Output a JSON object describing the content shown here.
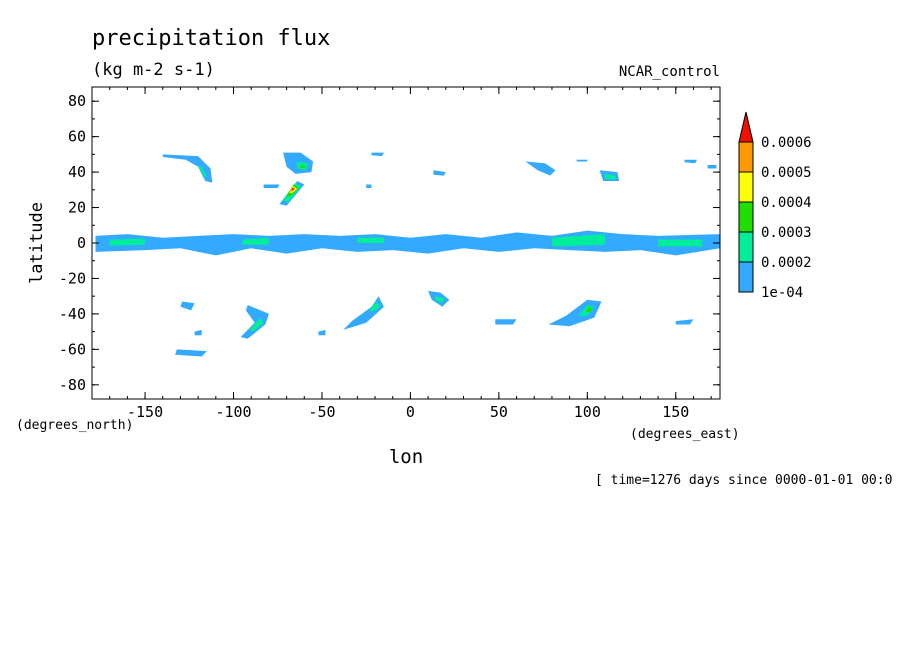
{
  "chart_data": {
    "type": "heatmap",
    "subtype": "filled-contour-map",
    "title": "precipitation flux",
    "subtitle": "(kg m-2 s-1)",
    "experiment": "NCAR_control",
    "xlabel": "lon",
    "ylabel": "latitude",
    "x_units": "(degrees_east)",
    "y_units": "(degrees_north)",
    "time_note": "[ time=1276 days since 0000-01-01 00:0",
    "xlim": [
      -180,
      175
    ],
    "ylim": [
      -88,
      88
    ],
    "x_ticks": [
      -150,
      -100,
      -50,
      0,
      50,
      100,
      150
    ],
    "y_ticks": [
      80,
      60,
      40,
      20,
      0,
      -20,
      -40,
      -60,
      -80
    ],
    "x_tick_labels": [
      "-150",
      "-100",
      "-50",
      "0",
      "50",
      "100",
      "150"
    ],
    "y_tick_labels": [
      "80",
      "60",
      "40",
      "20",
      "0",
      "-20",
      "-40",
      "-60",
      "-80"
    ],
    "grid": false,
    "legend_placement": "right",
    "colorbar": {
      "levels": [
        0.0001,
        0.0002,
        0.0003,
        0.0004,
        0.0005,
        0.0006
      ],
      "labels": [
        "1e-04",
        "0.0002",
        "0.0003",
        "0.0004",
        "0.0005",
        "0.0006"
      ],
      "colors": [
        "#33aaff",
        "#00ee99",
        "#22dd00",
        "#ffff00",
        "#ff9900",
        "#ee1100"
      ],
      "extend": "max"
    },
    "regions": [
      {
        "name": "itcz-band",
        "level": 0,
        "points": [
          [
            -178,
            4
          ],
          [
            -160,
            5
          ],
          [
            -140,
            3
          ],
          [
            -120,
            4
          ],
          [
            -100,
            5
          ],
          [
            -80,
            4
          ],
          [
            -60,
            5
          ],
          [
            -40,
            4
          ],
          [
            -20,
            5
          ],
          [
            0,
            3
          ],
          [
            20,
            5
          ],
          [
            40,
            3
          ],
          [
            60,
            6
          ],
          [
            80,
            4
          ],
          [
            100,
            7
          ],
          [
            120,
            5
          ],
          [
            140,
            4
          ],
          [
            175,
            5
          ],
          [
            175,
            -3
          ],
          [
            150,
            -7
          ],
          [
            130,
            -4
          ],
          [
            110,
            -5
          ],
          [
            90,
            -4
          ],
          [
            70,
            -3
          ],
          [
            50,
            -5
          ],
          [
            30,
            -3
          ],
          [
            10,
            -6
          ],
          [
            -10,
            -4
          ],
          [
            -30,
            -5
          ],
          [
            -50,
            -3
          ],
          [
            -70,
            -6
          ],
          [
            -90,
            -3
          ],
          [
            -110,
            -7
          ],
          [
            -130,
            -3
          ],
          [
            -150,
            -4
          ],
          [
            -178,
            -5
          ]
        ]
      },
      {
        "name": "itcz-core-west",
        "level": 1,
        "points": [
          [
            -170,
            2
          ],
          [
            -150,
            2.5
          ],
          [
            -150,
            -1
          ],
          [
            -170,
            -1.5
          ]
        ]
      },
      {
        "name": "itcz-core-mid",
        "level": 1,
        "points": [
          [
            -95,
            2
          ],
          [
            -80,
            3
          ],
          [
            -80,
            -1
          ],
          [
            -95,
            -1
          ]
        ]
      },
      {
        "name": "itcz-core-atl",
        "level": 1,
        "points": [
          [
            -30,
            3
          ],
          [
            -15,
            3
          ],
          [
            -15,
            0
          ],
          [
            -30,
            0
          ]
        ]
      },
      {
        "name": "itcz-core-ind",
        "level": 1,
        "points": [
          [
            80,
            3
          ],
          [
            110,
            5
          ],
          [
            110,
            -1
          ],
          [
            80,
            -2
          ]
        ]
      },
      {
        "name": "itcz-core-east",
        "level": 1,
        "points": [
          [
            140,
            2
          ],
          [
            165,
            2
          ],
          [
            165,
            -2
          ],
          [
            140,
            -2
          ]
        ]
      },
      {
        "name": "npac-arc",
        "level": 0,
        "points": [
          [
            -140,
            50
          ],
          [
            -120,
            49
          ],
          [
            -113,
            42
          ],
          [
            -112,
            34
          ],
          [
            -116,
            35
          ],
          [
            -120,
            43
          ],
          [
            -127,
            47
          ],
          [
            -140,
            48.5
          ]
        ]
      },
      {
        "name": "npac-arc-core",
        "level": 1,
        "points": [
          [
            -119,
            44
          ],
          [
            -115,
            38
          ],
          [
            -116,
            37
          ],
          [
            -120,
            43
          ]
        ]
      },
      {
        "name": "natl-storm-north",
        "level": 0,
        "points": [
          [
            -72,
            51
          ],
          [
            -62,
            51
          ],
          [
            -55,
            46
          ],
          [
            -56,
            40
          ],
          [
            -65,
            39
          ],
          [
            -70,
            43
          ]
        ]
      },
      {
        "name": "natl-storm-north-core",
        "level": 1,
        "points": [
          [
            -64,
            46
          ],
          [
            -58,
            45
          ],
          [
            -59,
            41
          ],
          [
            -64,
            42
          ]
        ]
      },
      {
        "name": "natl-storm-north-green",
        "level": 2,
        "points": [
          [
            -62,
            44
          ],
          [
            -59,
            43.5
          ],
          [
            -60,
            42
          ],
          [
            -62,
            42.5
          ]
        ]
      },
      {
        "name": "natl-storm-south",
        "level": 0,
        "points": [
          [
            -64,
            35
          ],
          [
            -60,
            33
          ],
          [
            -70,
            21
          ],
          [
            -74,
            22
          ]
        ]
      },
      {
        "name": "natl-storm-south-core",
        "level": 1,
        "points": [
          [
            -65,
            34
          ],
          [
            -62,
            32
          ],
          [
            -69,
            23
          ],
          [
            -72,
            24
          ]
        ]
      },
      {
        "name": "natl-storm-south-green",
        "level": 2,
        "points": [
          [
            -66,
            33
          ],
          [
            -63,
            31
          ],
          [
            -68,
            26
          ],
          [
            -70,
            27
          ]
        ]
      },
      {
        "name": "natl-storm-south-yellow",
        "level": 3,
        "points": [
          [
            -66.5,
            32
          ],
          [
            -64,
            30.5
          ],
          [
            -67,
            28
          ],
          [
            -68.5,
            28.5
          ]
        ]
      },
      {
        "name": "natl-storm-south-orange",
        "level": 4,
        "points": [
          [
            -67,
            31.5
          ],
          [
            -65,
            30.5
          ],
          [
            -67,
            29
          ],
          [
            -68,
            29.2
          ]
        ]
      },
      {
        "name": "natl-storm-south-red",
        "level": 5,
        "points": [
          [
            -67,
            31
          ],
          [
            -65.5,
            30.5
          ],
          [
            -66.8,
            29.6
          ]
        ]
      },
      {
        "name": "natl-small",
        "level": 0,
        "points": [
          [
            -83,
            33
          ],
          [
            -74,
            33
          ],
          [
            -75,
            31
          ],
          [
            -83,
            31
          ]
        ]
      },
      {
        "name": "nasia-blob",
        "level": 0,
        "points": [
          [
            65,
            46
          ],
          [
            76,
            45
          ],
          [
            82,
            41
          ],
          [
            79,
            38
          ],
          [
            72,
            41
          ]
        ]
      },
      {
        "name": "npac-east-blob",
        "level": 0,
        "points": [
          [
            107,
            41
          ],
          [
            117,
            40
          ],
          [
            118,
            35
          ],
          [
            109,
            35
          ]
        ]
      },
      {
        "name": "npac-east-core",
        "level": 1,
        "points": [
          [
            110,
            39
          ],
          [
            116,
            38
          ],
          [
            116,
            36
          ],
          [
            110,
            36
          ]
        ]
      },
      {
        "name": "spac-south-arc",
        "level": 0,
        "points": [
          [
            -92,
            -35
          ],
          [
            -80,
            -40
          ],
          [
            -82,
            -46
          ],
          [
            -92,
            -54
          ],
          [
            -96,
            -53
          ],
          [
            -88,
            -45
          ],
          [
            -93,
            -38
          ]
        ]
      },
      {
        "name": "spac-south-arc-core",
        "level": 1,
        "points": [
          [
            -85,
            -42
          ],
          [
            -83,
            -45
          ],
          [
            -89,
            -50
          ],
          [
            -91,
            -49
          ]
        ]
      },
      {
        "name": "satl-arc",
        "level": 0,
        "points": [
          [
            -18,
            -30
          ],
          [
            -15,
            -36
          ],
          [
            -25,
            -45
          ],
          [
            -38,
            -49
          ],
          [
            -33,
            -44
          ],
          [
            -22,
            -36
          ]
        ]
      },
      {
        "name": "satl-arc-core",
        "level": 1,
        "points": [
          [
            -19,
            -33
          ],
          [
            -17,
            -36
          ],
          [
            -22,
            -39
          ],
          [
            -23,
            -37
          ]
        ]
      },
      {
        "name": "sind-blob",
        "level": 0,
        "points": [
          [
            10,
            -27
          ],
          [
            17,
            -28
          ],
          [
            22,
            -32
          ],
          [
            18,
            -36
          ],
          [
            12,
            -32
          ]
        ]
      },
      {
        "name": "sind-core",
        "level": 1,
        "points": [
          [
            14,
            -30
          ],
          [
            19,
            -31
          ],
          [
            18,
            -34
          ],
          [
            14,
            -32
          ]
        ]
      },
      {
        "name": "aus-arc",
        "level": 0,
        "points": [
          [
            100,
            -32
          ],
          [
            108,
            -33
          ],
          [
            104,
            -42
          ],
          [
            90,
            -47
          ],
          [
            78,
            -46
          ],
          [
            88,
            -41
          ]
        ]
      },
      {
        "name": "aus-arc-core",
        "level": 1,
        "points": [
          [
            100,
            -35
          ],
          [
            104,
            -36
          ],
          [
            100,
            -41
          ],
          [
            95,
            -41
          ]
        ]
      },
      {
        "name": "aus-arc-green",
        "level": 2,
        "points": [
          [
            101,
            -36
          ],
          [
            103,
            -37
          ],
          [
            101,
            -39
          ],
          [
            99,
            -39
          ]
        ]
      },
      {
        "name": "spac-blob-west",
        "level": 0,
        "points": [
          [
            -129,
            -33
          ],
          [
            -122,
            -34
          ],
          [
            -124,
            -38
          ],
          [
            -130,
            -36
          ]
        ]
      },
      {
        "name": "southern-ocean-blob",
        "level": 0,
        "points": [
          [
            -132,
            -60
          ],
          [
            -115,
            -61
          ],
          [
            -118,
            -64
          ],
          [
            -133,
            -63
          ]
        ]
      },
      {
        "name": "tiny-1",
        "level": 0,
        "points": [
          [
            -122,
            -50
          ],
          [
            -118,
            -49
          ],
          [
            -118,
            -52
          ],
          [
            -122,
            -52
          ]
        ]
      },
      {
        "name": "tiny-2",
        "level": 0,
        "points": [
          [
            -52,
            -50
          ],
          [
            -48,
            -49
          ],
          [
            -48,
            -52
          ],
          [
            -52,
            -52
          ]
        ]
      },
      {
        "name": "tiny-3",
        "level": 0,
        "points": [
          [
            -22,
            51
          ],
          [
            -15,
            51
          ],
          [
            -16,
            49
          ],
          [
            -22,
            49.5
          ]
        ]
      },
      {
        "name": "tiny-4",
        "level": 0,
        "points": [
          [
            13,
            41
          ],
          [
            20,
            40
          ],
          [
            19,
            38
          ],
          [
            13,
            38.5
          ]
        ]
      },
      {
        "name": "tiny-5",
        "level": 0,
        "points": [
          [
            48,
            -43
          ],
          [
            60,
            -43
          ],
          [
            58,
            -46
          ],
          [
            48,
            -46
          ]
        ]
      },
      {
        "name": "tiny-6",
        "level": 0,
        "points": [
          [
            150,
            -44
          ],
          [
            160,
            -43
          ],
          [
            158,
            -46
          ],
          [
            150,
            -46
          ]
        ]
      },
      {
        "name": "tiny-7",
        "level": 0,
        "points": [
          [
            155,
            47
          ],
          [
            162,
            47
          ],
          [
            161,
            45
          ],
          [
            155,
            45.5
          ]
        ]
      },
      {
        "name": "tiny-8",
        "level": 0,
        "points": [
          [
            168,
            44
          ],
          [
            173,
            44
          ],
          [
            173,
            42
          ],
          [
            168,
            42
          ]
        ]
      },
      {
        "name": "tiny-9",
        "level": 0,
        "points": [
          [
            -25,
            33
          ],
          [
            -22,
            33
          ],
          [
            -22,
            31
          ],
          [
            -25,
            31
          ]
        ]
      },
      {
        "name": "tiny-10",
        "level": 0,
        "points": [
          [
            94,
            47
          ],
          [
            100,
            47
          ],
          [
            100,
            46
          ],
          [
            94,
            46
          ]
        ]
      }
    ]
  }
}
